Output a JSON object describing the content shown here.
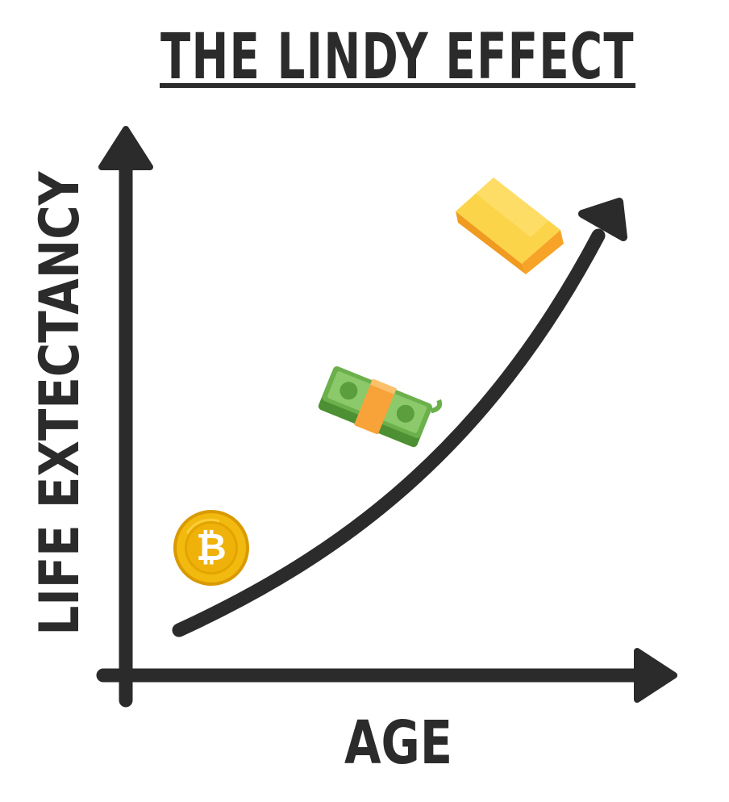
{
  "title": "THE LINDY EFFECT",
  "y_axis_label": "LIFE EXTECTANCY",
  "x_axis_label": "AGE",
  "colors": {
    "ink": "#2b2b2b",
    "background": "#ffffff",
    "coin_gold": "#f2b90f",
    "coin_dark": "#d99a00",
    "cash_green": "#6bb04b",
    "cash_band": "#f7a33a",
    "gold_bar": "#f9b233"
  },
  "items": [
    {
      "name": "bitcoin",
      "icon": "bitcoin-coin-icon",
      "symbol": "₿"
    },
    {
      "name": "cash",
      "icon": "cash-stack-icon"
    },
    {
      "name": "gold",
      "icon": "gold-bar-icon"
    }
  ]
}
